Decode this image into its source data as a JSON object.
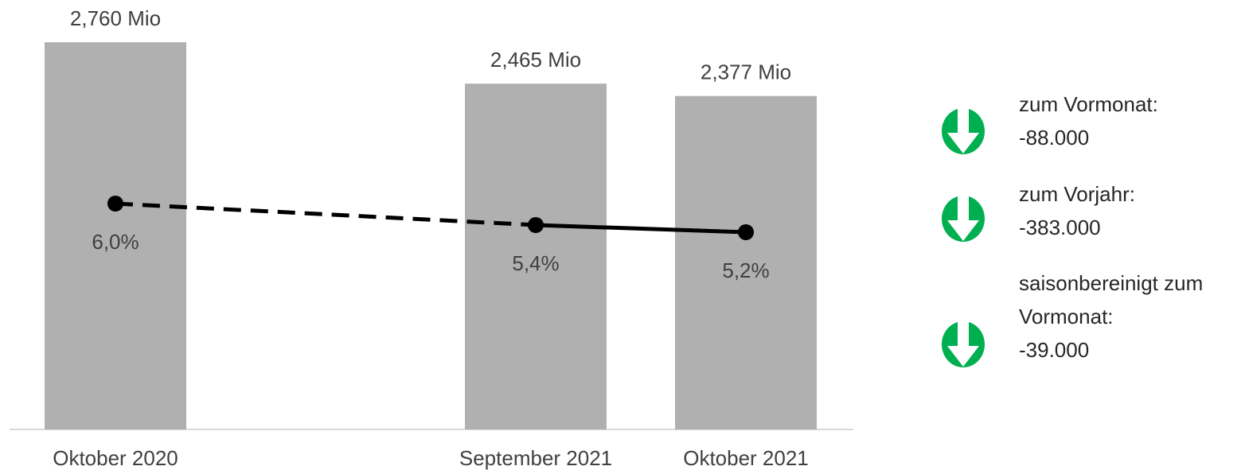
{
  "chart_data": {
    "type": "bar",
    "categories": [
      "Oktober 2020",
      "September 2021",
      "Oktober 2021"
    ],
    "series": [
      {
        "type": "bar",
        "color": "#b0b0b0",
        "values": [
          2.76,
          2.465,
          2.377
        ],
        "value_labels": [
          "2,760 Mio",
          "2,465 Mio",
          "2,377 Mio"
        ]
      },
      {
        "type": "line",
        "color": "#000000",
        "values": [
          6.0,
          5.4,
          5.2
        ],
        "value_labels": [
          "6,0%",
          "5,4%",
          "5,2%"
        ],
        "segment_styles": [
          "dashed",
          "solid"
        ]
      }
    ],
    "annotations": [
      {
        "label": "zum Vormonat:",
        "value": "-88.000"
      },
      {
        "label": "zum Vorjahr:",
        "value": "-383.000"
      },
      {
        "label": "saisonbereinigt zum Vormonat:",
        "value": "-39.000"
      }
    ],
    "annotation_color": "#00b050"
  }
}
